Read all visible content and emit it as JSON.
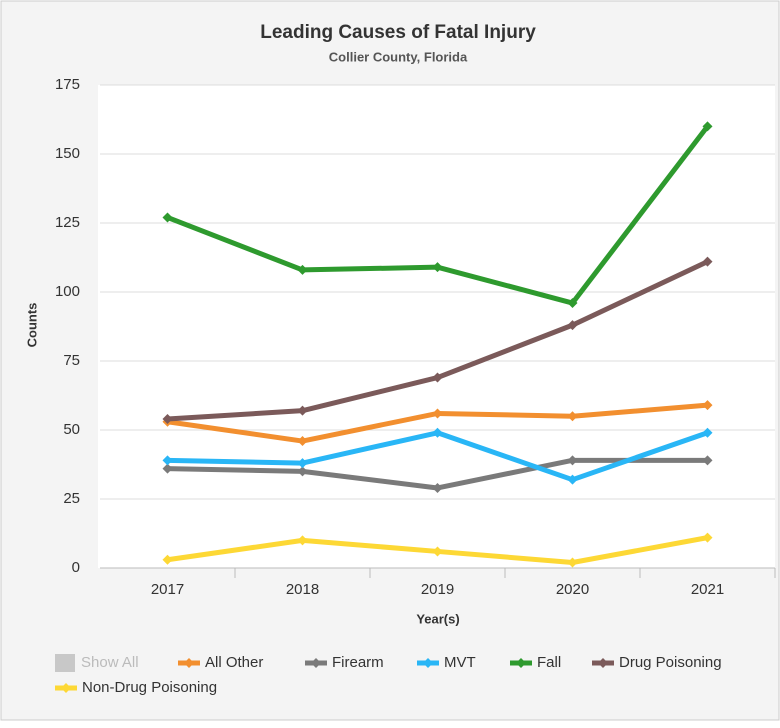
{
  "chart_data": {
    "type": "line",
    "title": "Leading Causes of Fatal Injury",
    "subtitle": "Collier County, Florida",
    "x_label": "Year(s)",
    "y_label": "Counts",
    "categories": [
      "2017",
      "2018",
      "2019",
      "2020",
      "2021"
    ],
    "ylim": [
      0,
      175
    ],
    "yticks": [
      0,
      25,
      50,
      75,
      100,
      125,
      150,
      175
    ],
    "grid": true,
    "show_all_label": "Show All",
    "series": [
      {
        "name": "All Other",
        "color": "#f28f2f",
        "values": [
          53,
          46,
          56,
          55,
          59
        ]
      },
      {
        "name": "Firearm",
        "color": "#7a7a7a",
        "values": [
          36,
          35,
          29,
          39,
          39
        ]
      },
      {
        "name": "MVT",
        "color": "#29b6f6",
        "values": [
          39,
          38,
          49,
          32,
          49
        ]
      },
      {
        "name": "Fall",
        "color": "#2e9a2e",
        "values": [
          127,
          108,
          109,
          96,
          160
        ]
      },
      {
        "name": "Drug Poisoning",
        "color": "#7b5a5a",
        "values": [
          54,
          57,
          69,
          88,
          111
        ]
      },
      {
        "name": "Non-Drug Poisoning",
        "color": "#fdd835",
        "values": [
          3,
          10,
          6,
          2,
          11
        ]
      }
    ]
  }
}
